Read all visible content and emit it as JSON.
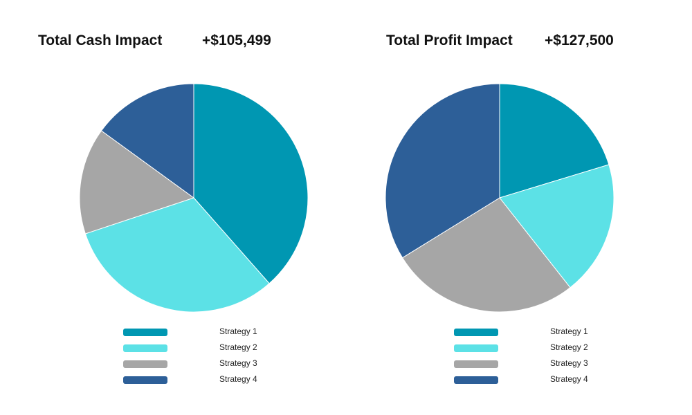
{
  "chart_data": [
    {
      "type": "pie",
      "title": "Total Cash Impact",
      "total": "+$105,499",
      "categories": [
        "Strategy 1",
        "Strategy 2",
        "Strategy 3",
        "Strategy 4"
      ],
      "values": [
        38.5,
        31.4,
        15.1,
        15.0
      ],
      "colors": [
        "#0097b2",
        "#5ce1e6",
        "#a6a6a6",
        "#2d5f98"
      ]
    },
    {
      "type": "pie",
      "title": "Total Profit Impact",
      "total": "+$127,500",
      "categories": [
        "Strategy 1",
        "Strategy 2",
        "Strategy 3",
        "Strategy 4"
      ],
      "values": [
        20.3,
        19.1,
        26.8,
        33.8
      ],
      "colors": [
        "#0097b2",
        "#5ce1e6",
        "#a6a6a6",
        "#2d5f98"
      ]
    }
  ]
}
